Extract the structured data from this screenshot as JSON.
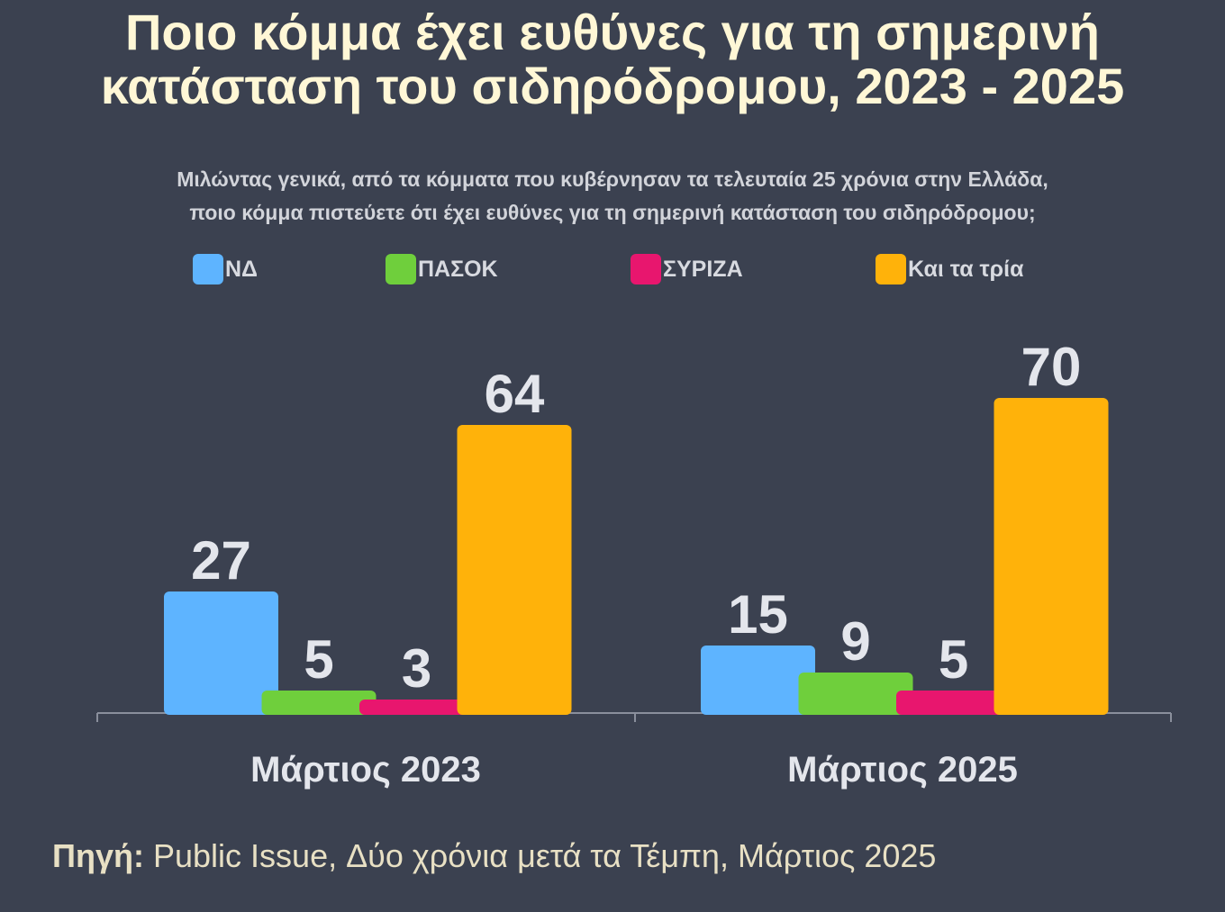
{
  "title_line1": "Ποιο κόμμα έχει ευθύνες για τη σημερινή",
  "title_line2": "κατάσταση του σιδηρόδρομου, 2023 - 2025",
  "subtitle_line1": "Μιλώντας γενικά, από τα κόμματα που κυβέρνησαν τα τελευταία 25 χρόνια στην Ελλάδα,",
  "subtitle_line2": "ποιο κόμμα πιστεύετε ότι έχει ευθύνες για τη σημερινή κατάσταση του σιδηρόδρομου;",
  "source_label": "Πηγή:",
  "source_text": " Public Issue, Δύο χρόνια μετά τα Τέμπη, Μάρτιος 2025",
  "chart_data": {
    "type": "bar",
    "title": "Ποιο κόμμα έχει ευθύνες για τη σημερινή κατάσταση του σιδηρόδρομου, 2023 - 2025",
    "categories": [
      "Μάρτιος  2023",
      "Μάρτιος  2025"
    ],
    "series": [
      {
        "name": "ΝΔ",
        "color": "#5eb4ff",
        "values": [
          27,
          15
        ]
      },
      {
        "name": "ΠΑΣΟΚ",
        "color": "#6fcf3c",
        "values": [
          5,
          9
        ]
      },
      {
        "name": "ΣΥΡΙΖΑ",
        "color": "#e8166e",
        "values": [
          3,
          5
        ]
      },
      {
        "name": "Και τα τρία",
        "color": "#ffb20a",
        "values": [
          64,
          70
        ]
      }
    ],
    "ylim": [
      0,
      78
    ],
    "legend_position": "top",
    "grid": false,
    "axis_color": "#8a8f9c",
    "value_label_color": "#e4e6ec",
    "category_label_color": "#e4e6ec"
  }
}
